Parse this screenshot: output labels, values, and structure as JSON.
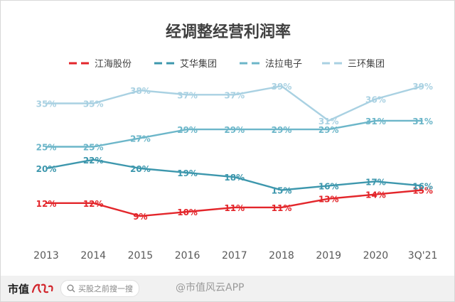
{
  "chart_data": {
    "type": "line",
    "title": "经调整经营利润率",
    "categories": [
      "2013",
      "2014",
      "2015",
      "2016",
      "2017",
      "2018",
      "2019",
      "2020",
      "3Q'21"
    ],
    "ylim": [
      0,
      45
    ],
    "grid": false,
    "legend_position": "top",
    "series": [
      {
        "name": "江海股份",
        "color": "#e3262b",
        "dash": true,
        "values": [
          12,
          12,
          9,
          10,
          11,
          11,
          13,
          14,
          15
        ],
        "labels": [
          "12%",
          "12%",
          "9%",
          "10%",
          "11%",
          "11%",
          "13%",
          "14%",
          "15%"
        ]
      },
      {
        "name": "艾华集团",
        "color": "#3d97ad",
        "dash": true,
        "values": [
          20,
          22,
          20,
          19,
          18,
          15,
          16,
          17,
          16
        ],
        "labels": [
          "20%",
          "22%",
          "20%",
          "19%",
          "18%",
          "15%",
          "16%",
          "17%",
          "16%"
        ]
      },
      {
        "name": "法拉电子",
        "color": "#6cb6c9",
        "dash": true,
        "values": [
          25,
          25,
          27,
          29,
          29,
          29,
          29,
          31,
          31
        ],
        "labels": [
          "25%",
          "25%",
          "27%",
          "29%",
          "29%",
          "29%",
          "29%",
          "31%",
          "31%"
        ]
      },
      {
        "name": "三环集团",
        "color": "#a9d1e2",
        "dash": true,
        "values": [
          35,
          35,
          38,
          37,
          37,
          39,
          31,
          36,
          39
        ],
        "labels": [
          "35%",
          "35%",
          "38%",
          "37%",
          "37%",
          "39%",
          "31%",
          "36%",
          "39%"
        ]
      }
    ]
  },
  "footer": {
    "brand": "市值",
    "brand_logo_icon": "fengyun-logo-icon",
    "search_placeholder": "买股之前搜一搜",
    "weibo_text": "@市值风云APP"
  }
}
